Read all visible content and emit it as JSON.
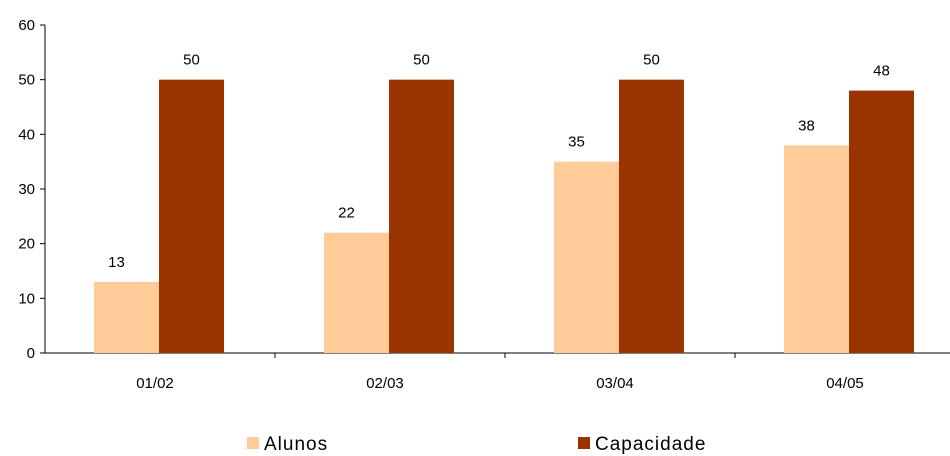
{
  "chart_data": {
    "type": "bar",
    "categories": [
      "01/02",
      "02/03",
      "03/04",
      "04/05"
    ],
    "series": [
      {
        "name": "Alunos",
        "values": [
          13,
          22,
          35,
          38
        ],
        "color": "#FFCC99"
      },
      {
        "name": "Capacidade",
        "values": [
          50,
          50,
          50,
          48
        ],
        "color": "#993300"
      }
    ],
    "ylim": [
      0,
      60
    ],
    "yticks": [
      0,
      10,
      20,
      30,
      40,
      50,
      60
    ],
    "data_labels": true,
    "grid": false,
    "legend_position": "bottom"
  }
}
